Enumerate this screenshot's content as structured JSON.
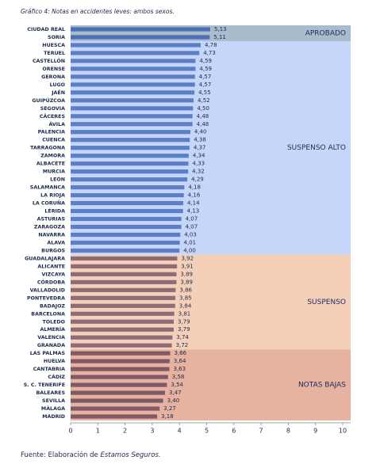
{
  "chart_data": {
    "type": "bar",
    "orientation": "horizontal",
    "title": "Gráfico 4: Notas en accidentes leves: ambos sexos.",
    "source_prefix": "Fuente: Elaboración de ",
    "source_italic": "Estamos Seguros.",
    "xlim": [
      0,
      10
    ],
    "xticks": [
      0,
      1,
      2,
      3,
      4,
      5,
      6,
      7,
      8,
      9,
      10
    ],
    "series": [
      {
        "name": "APROBADO",
        "band_color": "#a9bccd",
        "color": "#4d6fb3",
        "categories": [
          "CIUDAD REAL",
          "SORIA"
        ],
        "values": [
          5.13,
          5.11
        ],
        "value_labels": [
          "5,13",
          "5,11"
        ]
      },
      {
        "name": "SUSPENSO ALTO",
        "band_color": "#c6d6f8",
        "color": "#5b7ec6",
        "categories": [
          "HUESCA",
          "TERUEL",
          "CASTELLÓN",
          "ORENSE",
          "GERONA",
          "LUGO",
          "JAÉN",
          "GUIPÚZCOA",
          "SEGOVIA",
          "CÁCERES",
          "ÁVILA",
          "PALENCIA",
          "CUENCA",
          "TARRAGONA",
          "ZAMORA",
          "ALBACETE",
          "MURCIA",
          "LEÓN",
          "SALAMANCA",
          "LA RIOJA",
          "LA CORUÑA",
          "LÉRIDA",
          "ASTURIAS",
          "ZARAGOZA",
          "NAVARRA",
          "ÁLAVA",
          "BURGOS"
        ],
        "values": [
          4.78,
          4.73,
          4.59,
          4.59,
          4.57,
          4.57,
          4.55,
          4.52,
          4.5,
          4.48,
          4.48,
          4.4,
          4.38,
          4.37,
          4.34,
          4.33,
          4.32,
          4.29,
          4.18,
          4.16,
          4.14,
          4.13,
          4.07,
          4.07,
          4.03,
          4.01,
          4.0
        ],
        "value_labels": [
          "4,78",
          "4,73",
          "4,59",
          "4,59",
          "4,57",
          "4,57",
          "4,55",
          "4,52",
          "4,50",
          "4,48",
          "4,48",
          "4,40",
          "4,38",
          "4,37",
          "4,34",
          "4,33",
          "4,32",
          "4,29",
          "4,18",
          "4,16",
          "4,14",
          "4,13",
          "4,07",
          "4,07",
          "4,03",
          "4,01",
          "4,00"
        ]
      },
      {
        "name": "SUSPENSO",
        "band_color": "#f5d0b9",
        "color": "#8f6b78",
        "categories": [
          "GUADALAJARA",
          "ALICANTE",
          "VIZCAYA",
          "CÓRDOBA",
          "VALLADOLID",
          "PONTEVEDRA",
          "BADAJOZ",
          "BARCELONA",
          "TOLEDO",
          "ALMERÍA",
          "VALENCIA",
          "GRANADA"
        ],
        "values": [
          3.92,
          3.91,
          3.89,
          3.89,
          3.86,
          3.85,
          3.84,
          3.81,
          3.79,
          3.79,
          3.74,
          3.72
        ],
        "value_labels": [
          "3,92",
          "3,91",
          "3,89",
          "3,89",
          "3,86",
          "3,85",
          "3,84",
          "3,81",
          "3,79",
          "3,79",
          "3,74",
          "3,72"
        ]
      },
      {
        "name": "NOTAS BAJAS",
        "band_color": "#e7b29f",
        "color": "#7f5a66",
        "categories": [
          "LAS PALMAS",
          "HUELVA",
          "CANTABRIA",
          "CÁDIZ",
          "S. C. TENERIFE",
          "BALEARES",
          "SEVILLA",
          "MÁLAGA",
          "MADRID"
        ],
        "values": [
          3.66,
          3.64,
          3.63,
          3.58,
          3.54,
          3.47,
          3.4,
          3.27,
          3.18
        ],
        "value_labels": [
          "3,66",
          "3,64",
          "3,63",
          "3,58",
          "3,54",
          "3,47",
          "3,40",
          "3,27",
          "3,18"
        ]
      }
    ]
  }
}
